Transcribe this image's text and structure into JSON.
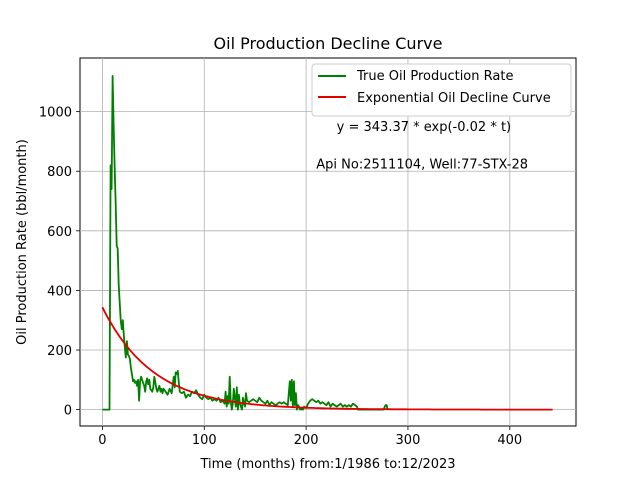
{
  "chart_data": {
    "type": "line",
    "title": "Oil Production Decline Curve",
    "xlabel": "Time (months) from:1/1986 to:12/2023",
    "ylabel": "Oil Production Rate (bbl/month)",
    "xlim": [
      -22,
      465
    ],
    "ylim": [
      -55,
      1180
    ],
    "xticks": [
      0,
      100,
      200,
      300,
      400
    ],
    "yticks": [
      0,
      200,
      400,
      600,
      800,
      1000
    ],
    "grid": true,
    "legend_position": "top-right",
    "annotations": [
      {
        "text": "y = 343.37 * exp(-0.02 * t)",
        "x": 230,
        "y": 935
      },
      {
        "text": "Api No:2511104, Well:77-STX-28",
        "x": 210,
        "y": 810
      }
    ],
    "series": [
      {
        "name": "True Oil Production Rate",
        "color": "#008000",
        "points": [
          [
            0,
            0
          ],
          [
            2,
            0
          ],
          [
            4,
            0
          ],
          [
            6,
            0
          ],
          [
            7,
            0
          ],
          [
            8,
            820
          ],
          [
            9,
            740
          ],
          [
            10,
            1120
          ],
          [
            11,
            960
          ],
          [
            12,
            820
          ],
          [
            13,
            700
          ],
          [
            14,
            550
          ],
          [
            15,
            540
          ],
          [
            16,
            420
          ],
          [
            17,
            360
          ],
          [
            18,
            300
          ],
          [
            19,
            270
          ],
          [
            20,
            300
          ],
          [
            21,
            250
          ],
          [
            22,
            210
          ],
          [
            23,
            175
          ],
          [
            24,
            230
          ],
          [
            25,
            185
          ],
          [
            26,
            180
          ],
          [
            27,
            170
          ],
          [
            28,
            140
          ],
          [
            29,
            120
          ],
          [
            30,
            95
          ],
          [
            31,
            100
          ],
          [
            32,
            90
          ],
          [
            33,
            95
          ],
          [
            34,
            80
          ],
          [
            35,
            100
          ],
          [
            36,
            30
          ],
          [
            37,
            95
          ],
          [
            38,
            110
          ],
          [
            39,
            100
          ],
          [
            40,
            90
          ],
          [
            41,
            80
          ],
          [
            42,
            60
          ],
          [
            43,
            95
          ],
          [
            44,
            105
          ],
          [
            45,
            85
          ],
          [
            46,
            100
          ],
          [
            47,
            70
          ],
          [
            48,
            65
          ],
          [
            49,
            60
          ],
          [
            50,
            75
          ],
          [
            51,
            110
          ],
          [
            52,
            90
          ],
          [
            53,
            70
          ],
          [
            54,
            60
          ],
          [
            55,
            70
          ],
          [
            56,
            80
          ],
          [
            57,
            60
          ],
          [
            58,
            70
          ],
          [
            59,
            55
          ],
          [
            60,
            70
          ],
          [
            62,
            60
          ],
          [
            64,
            50
          ],
          [
            66,
            70
          ],
          [
            68,
            55
          ],
          [
            70,
            110
          ],
          [
            71,
            75
          ],
          [
            72,
            125
          ],
          [
            73,
            120
          ],
          [
            74,
            130
          ],
          [
            75,
            90
          ],
          [
            76,
            60
          ],
          [
            78,
            55
          ],
          [
            80,
            60
          ],
          [
            82,
            40
          ],
          [
            84,
            50
          ],
          [
            86,
            45
          ],
          [
            88,
            60
          ],
          [
            90,
            55
          ],
          [
            92,
            65
          ],
          [
            94,
            50
          ],
          [
            96,
            40
          ],
          [
            98,
            35
          ],
          [
            100,
            50
          ],
          [
            102,
            40
          ],
          [
            104,
            35
          ],
          [
            106,
            40
          ],
          [
            108,
            30
          ],
          [
            110,
            35
          ],
          [
            112,
            30
          ],
          [
            114,
            40
          ],
          [
            116,
            25
          ],
          [
            118,
            30
          ],
          [
            120,
            20
          ],
          [
            121,
            60
          ],
          [
            122,
            10
          ],
          [
            123,
            45
          ],
          [
            124,
            20
          ],
          [
            125,
            110
          ],
          [
            126,
            30
          ],
          [
            127,
            0
          ],
          [
            128,
            20
          ],
          [
            129,
            70
          ],
          [
            130,
            40
          ],
          [
            131,
            10
          ],
          [
            132,
            75
          ],
          [
            133,
            0
          ],
          [
            134,
            50
          ],
          [
            135,
            20
          ],
          [
            136,
            10
          ],
          [
            137,
            0
          ],
          [
            138,
            40
          ],
          [
            139,
            20
          ],
          [
            140,
            10
          ],
          [
            141,
            55
          ],
          [
            142,
            30
          ],
          [
            144,
            25
          ],
          [
            146,
            30
          ],
          [
            148,
            35
          ],
          [
            150,
            30
          ],
          [
            152,
            25
          ],
          [
            154,
            40
          ],
          [
            156,
            30
          ],
          [
            158,
            25
          ],
          [
            160,
            20
          ],
          [
            162,
            30
          ],
          [
            164,
            15
          ],
          [
            166,
            25
          ],
          [
            168,
            20
          ],
          [
            170,
            15
          ],
          [
            172,
            20
          ],
          [
            174,
            25
          ],
          [
            176,
            20
          ],
          [
            178,
            25
          ],
          [
            180,
            20
          ],
          [
            182,
            15
          ],
          [
            184,
            95
          ],
          [
            185,
            30
          ],
          [
            186,
            100
          ],
          [
            187,
            10
          ],
          [
            188,
            95
          ],
          [
            189,
            15
          ],
          [
            190,
            55
          ],
          [
            191,
            0
          ],
          [
            192,
            15
          ],
          [
            193,
            10
          ],
          [
            194,
            0
          ],
          [
            195,
            5
          ],
          [
            196,
            0
          ],
          [
            197,
            0
          ],
          [
            198,
            10
          ],
          [
            200,
            5
          ],
          [
            202,
            20
          ],
          [
            204,
            30
          ],
          [
            206,
            35
          ],
          [
            208,
            30
          ],
          [
            210,
            25
          ],
          [
            212,
            30
          ],
          [
            214,
            20
          ],
          [
            216,
            25
          ],
          [
            218,
            20
          ],
          [
            220,
            15
          ],
          [
            222,
            25
          ],
          [
            224,
            10
          ],
          [
            226,
            20
          ],
          [
            228,
            15
          ],
          [
            230,
            10
          ],
          [
            232,
            15
          ],
          [
            234,
            20
          ],
          [
            236,
            10
          ],
          [
            238,
            15
          ],
          [
            240,
            10
          ],
          [
            242,
            15
          ],
          [
            244,
            10
          ],
          [
            246,
            20
          ],
          [
            248,
            15
          ],
          [
            250,
            10
          ],
          [
            251,
            0
          ],
          [
            252,
            0
          ],
          [
            256,
            0
          ],
          [
            260,
            0
          ],
          [
            264,
            0
          ],
          [
            268,
            0
          ],
          [
            272,
            0
          ],
          [
            276,
            0
          ],
          [
            278,
            15
          ],
          [
            279,
            15
          ],
          [
            280,
            0
          ]
        ]
      },
      {
        "name": "Exponential Oil Decline Curve",
        "color": "#e00000",
        "equation": {
          "a": 343.37,
          "b": -0.02
        },
        "x_range": [
          0,
          442
        ]
      }
    ]
  }
}
